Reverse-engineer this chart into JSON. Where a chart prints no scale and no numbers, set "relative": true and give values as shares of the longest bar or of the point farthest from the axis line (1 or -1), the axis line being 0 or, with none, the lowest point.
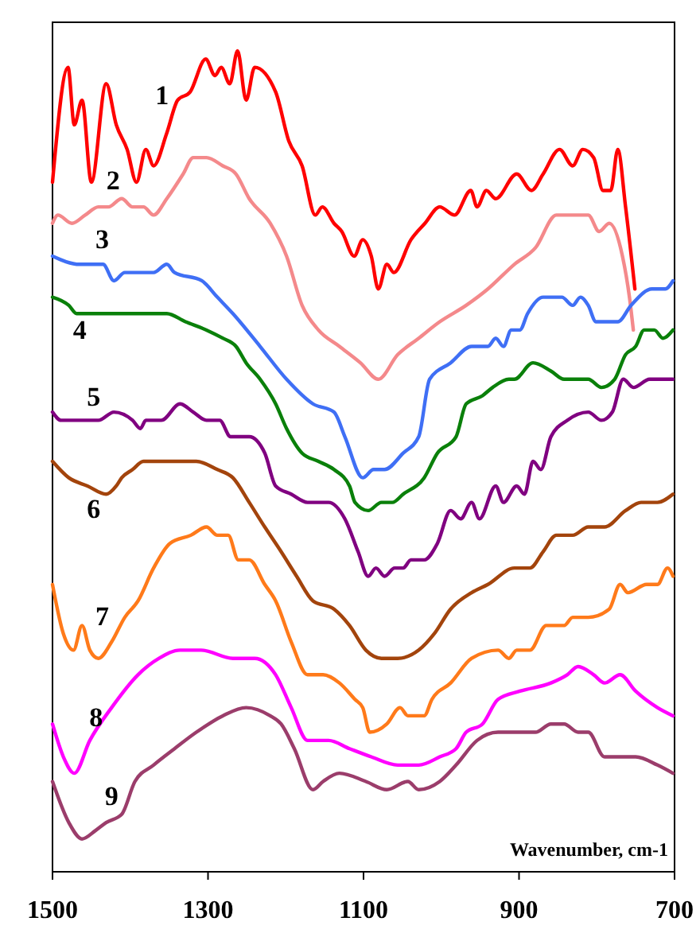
{
  "chart_data": {
    "type": "line",
    "relative": true,
    "xlabel": "Wavenumber, cm-1",
    "xlim": [
      1500,
      700
    ],
    "xticks": [
      1500,
      1300,
      1100,
      900,
      700
    ],
    "legend": false,
    "grid": false,
    "marker": "none",
    "line_style": "solid",
    "series": [
      {
        "name": "1",
        "color": "#ff0000",
        "x": [
          1500,
          1480,
          1472,
          1462,
          1450,
          1431,
          1418,
          1404,
          1392,
          1380,
          1370,
          1353,
          1339,
          1323,
          1303,
          1291,
          1283,
          1272,
          1262,
          1251,
          1240,
          1213,
          1196,
          1179,
          1162,
          1153,
          1138,
          1128,
          1112,
          1101,
          1090,
          1081,
          1070,
          1061,
          1039,
          1021,
          1002,
          983,
          962,
          954,
          942,
          930,
          903,
          884,
          869,
          848,
          831,
          818,
          804,
          792,
          782,
          773,
          763,
          751
        ],
        "values": [
          0.84,
          0.98,
          0.91,
          0.94,
          0.84,
          0.96,
          0.91,
          0.88,
          0.84,
          0.88,
          0.86,
          0.9,
          0.94,
          0.95,
          0.99,
          0.97,
          0.98,
          0.96,
          1,
          0.94,
          0.98,
          0.95,
          0.89,
          0.86,
          0.8,
          0.81,
          0.79,
          0.78,
          0.75,
          0.77,
          0.75,
          0.71,
          0.74,
          0.73,
          0.77,
          0.79,
          0.81,
          0.8,
          0.83,
          0.81,
          0.83,
          0.82,
          0.85,
          0.83,
          0.85,
          0.88,
          0.86,
          0.88,
          0.87,
          0.83,
          0.83,
          0.88,
          0.81,
          0.71
        ]
      },
      {
        "name": "2",
        "color": "#f4898b",
        "x": [
          1500,
          1493,
          1475,
          1458,
          1441,
          1428,
          1411,
          1397,
          1383,
          1370,
          1353,
          1332,
          1319,
          1302,
          1281,
          1264,
          1247,
          1220,
          1199,
          1179,
          1158,
          1131,
          1104,
          1081,
          1056,
          1029,
          1002,
          968,
          940,
          906,
          879,
          852,
          811,
          797,
          784,
          767,
          758,
          753
        ],
        "values": [
          0.79,
          0.8,
          0.79,
          0.8,
          0.81,
          0.81,
          0.82,
          0.81,
          0.81,
          0.8,
          0.82,
          0.85,
          0.87,
          0.87,
          0.86,
          0.85,
          0.82,
          0.79,
          0.75,
          0.69,
          0.66,
          0.64,
          0.62,
          0.6,
          0.63,
          0.65,
          0.67,
          0.69,
          0.71,
          0.74,
          0.76,
          0.8,
          0.8,
          0.78,
          0.79,
          0.75,
          0.7,
          0.66
        ]
      },
      {
        "name": "3",
        "color": "#3f6ff5",
        "x": [
          1500,
          1465,
          1435,
          1421,
          1407,
          1370,
          1353,
          1343,
          1308,
          1288,
          1268,
          1233,
          1199,
          1165,
          1138,
          1124,
          1101,
          1087,
          1073,
          1049,
          1029,
          1015,
          988,
          961,
          940,
          930,
          920,
          910,
          899,
          889,
          869,
          845,
          831,
          821,
          811,
          801,
          784,
          773,
          756,
          729,
          712,
          702
        ],
        "values": [
          0.75,
          0.74,
          0.74,
          0.72,
          0.73,
          0.73,
          0.74,
          0.73,
          0.72,
          0.7,
          0.68,
          0.64,
          0.6,
          0.57,
          0.56,
          0.53,
          0.48,
          0.49,
          0.49,
          0.51,
          0.53,
          0.6,
          0.62,
          0.64,
          0.64,
          0.65,
          0.64,
          0.66,
          0.66,
          0.68,
          0.7,
          0.7,
          0.69,
          0.7,
          0.69,
          0.67,
          0.67,
          0.67,
          0.69,
          0.71,
          0.71,
          0.72
        ]
      },
      {
        "name": "4",
        "color": "#0a800a",
        "x": [
          1500,
          1479,
          1469,
          1452,
          1418,
          1377,
          1353,
          1329,
          1302,
          1281,
          1264,
          1251,
          1233,
          1213,
          1199,
          1179,
          1158,
          1138,
          1118,
          1111,
          1094,
          1077,
          1063,
          1049,
          1022,
          1005,
          981,
          968,
          947,
          934,
          913,
          906,
          882,
          859,
          842,
          811,
          794,
          777,
          763,
          750,
          739,
          726,
          715,
          702
        ],
        "values": [
          0.7,
          0.69,
          0.68,
          0.68,
          0.68,
          0.68,
          0.68,
          0.67,
          0.66,
          0.65,
          0.64,
          0.62,
          0.6,
          0.57,
          0.54,
          0.51,
          0.5,
          0.49,
          0.47,
          0.45,
          0.44,
          0.45,
          0.45,
          0.46,
          0.48,
          0.51,
          0.53,
          0.57,
          0.58,
          0.59,
          0.6,
          0.6,
          0.62,
          0.61,
          0.6,
          0.6,
          0.59,
          0.6,
          0.63,
          0.64,
          0.66,
          0.66,
          0.65,
          0.66
        ]
      },
      {
        "name": "5",
        "color": "#800080",
        "x": [
          1500,
          1489,
          1472,
          1441,
          1421,
          1397,
          1387,
          1380,
          1370,
          1360,
          1336,
          1319,
          1302,
          1285,
          1271,
          1247,
          1227,
          1213,
          1193,
          1172,
          1145,
          1124,
          1107,
          1094,
          1084,
          1073,
          1060,
          1049,
          1039,
          1022,
          1005,
          988,
          975,
          961,
          951,
          930,
          920,
          903,
          893,
          882,
          872,
          859,
          838,
          811,
          794,
          780,
          766,
          753,
          732,
          718,
          702
        ],
        "values": [
          0.56,
          0.55,
          0.55,
          0.55,
          0.56,
          0.55,
          0.54,
          0.55,
          0.55,
          0.55,
          0.57,
          0.56,
          0.55,
          0.55,
          0.53,
          0.53,
          0.51,
          0.47,
          0.46,
          0.45,
          0.45,
          0.43,
          0.39,
          0.36,
          0.37,
          0.36,
          0.37,
          0.37,
          0.38,
          0.38,
          0.4,
          0.44,
          0.43,
          0.45,
          0.43,
          0.47,
          0.45,
          0.47,
          0.46,
          0.5,
          0.49,
          0.53,
          0.55,
          0.56,
          0.55,
          0.56,
          0.6,
          0.59,
          0.6,
          0.6,
          0.6
        ]
      },
      {
        "name": "6",
        "color": "#a3440c",
        "x": [
          1500,
          1479,
          1455,
          1431,
          1418,
          1411,
          1397,
          1383,
          1356,
          1315,
          1288,
          1268,
          1247,
          1227,
          1206,
          1186,
          1165,
          1138,
          1118,
          1097,
          1077,
          1056,
          1029,
          1009,
          988,
          961,
          940,
          906,
          886,
          869,
          852,
          831,
          811,
          790,
          763,
          743,
          722,
          702
        ],
        "values": [
          0.5,
          0.48,
          0.47,
          0.46,
          0.47,
          0.48,
          0.49,
          0.5,
          0.5,
          0.5,
          0.49,
          0.48,
          0.45,
          0.42,
          0.39,
          0.36,
          0.33,
          0.32,
          0.3,
          0.27,
          0.26,
          0.26,
          0.27,
          0.29,
          0.32,
          0.34,
          0.35,
          0.37,
          0.37,
          0.39,
          0.41,
          0.41,
          0.42,
          0.42,
          0.44,
          0.45,
          0.45,
          0.46
        ]
      },
      {
        "name": "7",
        "color": "#ff7a1a",
        "x": [
          1500,
          1486,
          1473,
          1462,
          1452,
          1441,
          1424,
          1407,
          1390,
          1370,
          1349,
          1322,
          1302,
          1288,
          1274,
          1261,
          1247,
          1227,
          1213,
          1193,
          1172,
          1152,
          1131,
          1111,
          1101,
          1092,
          1070,
          1053,
          1043,
          1032,
          1022,
          1012,
          988,
          961,
          927,
          913,
          903,
          886,
          865,
          848,
          842,
          831,
          811,
          784,
          770,
          760,
          736,
          722,
          709,
          702
        ],
        "values": [
          0.35,
          0.29,
          0.27,
          0.3,
          0.27,
          0.26,
          0.28,
          0.31,
          0.33,
          0.37,
          0.4,
          0.41,
          0.42,
          0.41,
          0.41,
          0.38,
          0.38,
          0.35,
          0.33,
          0.28,
          0.24,
          0.24,
          0.23,
          0.21,
          0.2,
          0.17,
          0.18,
          0.2,
          0.19,
          0.19,
          0.19,
          0.21,
          0.23,
          0.26,
          0.27,
          0.26,
          0.27,
          0.27,
          0.3,
          0.3,
          0.3,
          0.31,
          0.31,
          0.32,
          0.35,
          0.34,
          0.35,
          0.35,
          0.37,
          0.36
        ]
      },
      {
        "name": "8",
        "color": "#ff00ff",
        "x": [
          1500,
          1486,
          1472,
          1452,
          1424,
          1390,
          1363,
          1336,
          1309,
          1268,
          1240,
          1213,
          1193,
          1172,
          1158,
          1145,
          1118,
          1090,
          1056,
          1029,
          1002,
          981,
          968,
          947,
          927,
          899,
          859,
          838,
          824,
          804,
          790,
          770,
          750,
          722,
          702
        ],
        "values": [
          0.18,
          0.14,
          0.12,
          0.16,
          0.2,
          0.24,
          0.26,
          0.27,
          0.27,
          0.26,
          0.26,
          0.24,
          0.2,
          0.16,
          0.16,
          0.16,
          0.15,
          0.14,
          0.13,
          0.13,
          0.14,
          0.15,
          0.17,
          0.18,
          0.21,
          0.22,
          0.23,
          0.24,
          0.25,
          0.24,
          0.23,
          0.24,
          0.22,
          0.2,
          0.19
        ]
      },
      {
        "name": "9",
        "color": "#9b3d6b",
        "x": [
          1500,
          1479,
          1462,
          1445,
          1431,
          1411,
          1394,
          1370,
          1343,
          1315,
          1281,
          1251,
          1220,
          1206,
          1189,
          1165,
          1152,
          1131,
          1097,
          1070,
          1043,
          1029,
          1002,
          981,
          954,
          927,
          893,
          879,
          859,
          842,
          824,
          811,
          790,
          770,
          750,
          722,
          702
        ],
        "values": [
          0.11,
          0.06,
          0.04,
          0.05,
          0.06,
          0.07,
          0.11,
          0.13,
          0.15,
          0.17,
          0.19,
          0.2,
          0.19,
          0.18,
          0.15,
          0.1,
          0.11,
          0.12,
          0.11,
          0.1,
          0.11,
          0.1,
          0.11,
          0.13,
          0.16,
          0.17,
          0.17,
          0.17,
          0.18,
          0.18,
          0.17,
          0.17,
          0.14,
          0.14,
          0.14,
          0.13,
          0.12
        ]
      }
    ]
  }
}
